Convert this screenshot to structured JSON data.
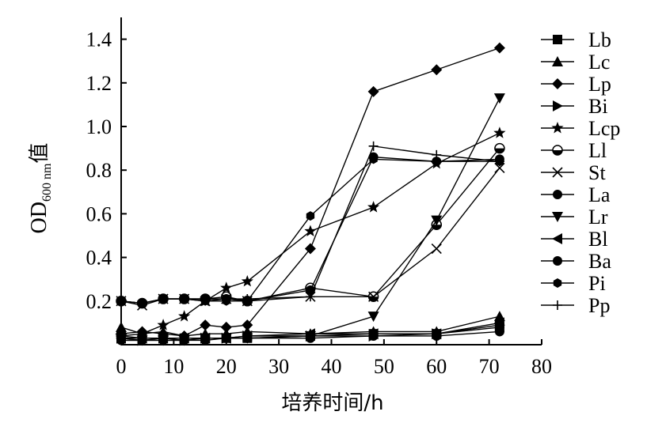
{
  "chart_data": {
    "type": "line",
    "title": "",
    "xlabel": "培养时间/h",
    "ylabel": {
      "main": "OD",
      "sub": "600 nm",
      "suffix": "值"
    },
    "xlim": [
      0,
      80
    ],
    "ylim": [
      0,
      1.5
    ],
    "xticks": [
      0,
      10,
      20,
      30,
      40,
      50,
      60,
      70,
      80
    ],
    "yticks": [
      0.2,
      0.4,
      0.6,
      0.8,
      1.0,
      1.2,
      1.4
    ],
    "xtick_labels": [
      "0",
      "10",
      "20",
      "30",
      "40",
      "50",
      "60",
      "70",
      "80"
    ],
    "ytick_labels": [
      "0.2",
      "0.4",
      "0.6",
      "0.8",
      "1.0",
      "1.2",
      "1.4"
    ],
    "grid": false,
    "legend_position": "right",
    "x": [
      0,
      4,
      8,
      12,
      16,
      20,
      24,
      36,
      48,
      60,
      72
    ],
    "series": [
      {
        "name": "Lb",
        "marker": "square",
        "values": [
          0.04,
          0.03,
          0.03,
          0.03,
          0.03,
          0.03,
          0.03,
          0.04,
          0.05,
          0.05,
          0.08
        ]
      },
      {
        "name": "Lc",
        "marker": "triangle-up",
        "values": [
          0.08,
          0.05,
          0.06,
          0.04,
          0.05,
          0.05,
          0.06,
          0.05,
          0.06,
          0.06,
          0.13
        ]
      },
      {
        "name": "Lp",
        "marker": "diamond",
        "values": [
          0.05,
          0.06,
          0.05,
          0.04,
          0.09,
          0.08,
          0.09,
          0.44,
          1.16,
          1.26,
          1.36
        ]
      },
      {
        "name": "Bi",
        "marker": "triangle-right",
        "values": [
          0.03,
          0.02,
          0.03,
          0.02,
          0.03,
          0.03,
          0.04,
          0.04,
          0.04,
          0.05,
          0.09
        ]
      },
      {
        "name": "Lcp",
        "marker": "star",
        "values": [
          0.04,
          0.05,
          0.09,
          0.13,
          0.2,
          0.26,
          0.29,
          0.52,
          0.63,
          0.83,
          0.97
        ]
      },
      {
        "name": "Ll",
        "marker": "half-circle",
        "values": [
          0.2,
          0.19,
          0.21,
          0.21,
          0.21,
          0.22,
          0.2,
          0.26,
          0.22,
          0.55,
          0.9
        ]
      },
      {
        "name": "St",
        "marker": "x",
        "values": [
          0.2,
          0.18,
          0.21,
          0.21,
          0.2,
          0.21,
          0.2,
          0.22,
          0.22,
          0.44,
          0.81
        ]
      },
      {
        "name": "La",
        "marker": "circle",
        "values": [
          0.02,
          0.02,
          0.02,
          0.02,
          0.02,
          0.03,
          0.03,
          0.03,
          0.04,
          0.04,
          0.06
        ]
      },
      {
        "name": "Lr",
        "marker": "triangle-down",
        "values": [
          0.02,
          0.02,
          0.02,
          0.02,
          0.03,
          0.03,
          0.03,
          0.04,
          0.13,
          0.57,
          1.13
        ]
      },
      {
        "name": "Bl",
        "marker": "triangle-left",
        "values": [
          0.03,
          0.03,
          0.03,
          0.03,
          0.03,
          0.03,
          0.04,
          0.05,
          0.05,
          0.05,
          0.1
        ]
      },
      {
        "name": "Ba",
        "marker": "circle",
        "values": [
          0.2,
          0.19,
          0.21,
          0.21,
          0.21,
          0.21,
          0.2,
          0.25,
          0.86,
          0.84,
          0.85
        ]
      },
      {
        "name": "Pi",
        "marker": "hexagon",
        "values": [
          0.2,
          0.19,
          0.21,
          0.21,
          0.2,
          0.2,
          0.2,
          0.59,
          0.85,
          0.84,
          0.84
        ]
      },
      {
        "name": "Pp",
        "marker": "plus",
        "values": [
          0.2,
          0.19,
          0.21,
          0.21,
          0.21,
          0.21,
          0.21,
          0.22,
          0.91,
          0.87,
          0.84
        ]
      }
    ]
  }
}
